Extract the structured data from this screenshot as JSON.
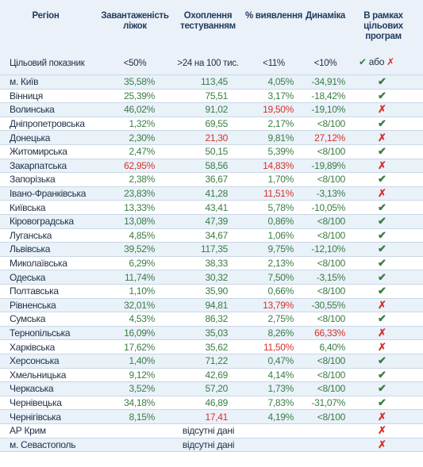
{
  "header": [
    "Регіон",
    "Завантаженість ліжок",
    "Охоплення тестуванням",
    "% виявлення",
    "Динаміка",
    "В рамках цільових програм"
  ],
  "target": {
    "cells": [
      "Цільовий показник",
      "<50%",
      ">24 на 100 тис.",
      "<11%",
      "<10%"
    ],
    "or": "або"
  },
  "rows": [
    {
      "cells": [
        "м. Київ",
        "35,58%",
        "113,45",
        "4,05%",
        "-34,91%"
      ],
      "red": [],
      "ok": true
    },
    {
      "cells": [
        "Вінниця",
        "25,39%",
        "75,51",
        "3,17%",
        "-18,42%"
      ],
      "red": [],
      "ok": true
    },
    {
      "cells": [
        "Волинська",
        "46,02%",
        "91,02",
        "19,50%",
        "-19,10%"
      ],
      "red": [
        3
      ],
      "ok": false
    },
    {
      "cells": [
        "Дніпропетровська",
        "1,32%",
        "69,55",
        "2,17%",
        "<8/100"
      ],
      "red": [],
      "ok": true
    },
    {
      "cells": [
        "Донецька",
        "2,30%",
        "21,30",
        "9,81%",
        "27,12%"
      ],
      "red": [
        2,
        4
      ],
      "ok": false
    },
    {
      "cells": [
        "Житомирська",
        "2,47%",
        "50,15",
        "5,39%",
        "<8/100"
      ],
      "red": [],
      "ok": true
    },
    {
      "cells": [
        "Закарпатська",
        "62,95%",
        "58,56",
        "14,83%",
        "-19,89%"
      ],
      "red": [
        1,
        3
      ],
      "ok": false
    },
    {
      "cells": [
        "Запорізька",
        "2,38%",
        "36,67",
        "1,70%",
        "<8/100"
      ],
      "red": [],
      "ok": true
    },
    {
      "cells": [
        "Івано-Франківська",
        "23,83%",
        "41,28",
        "11,51%",
        "-3,13%"
      ],
      "red": [
        3
      ],
      "ok": false
    },
    {
      "cells": [
        "Київська",
        "13,33%",
        "43,41",
        "5,78%",
        "-10,05%"
      ],
      "red": [],
      "ok": true
    },
    {
      "cells": [
        "Кіровоградська",
        "13,08%",
        "47,39",
        "0,86%",
        "<8/100"
      ],
      "red": [],
      "ok": true
    },
    {
      "cells": [
        "Луганська",
        "4,85%",
        "34,67",
        "1,06%",
        "<8/100"
      ],
      "red": [],
      "ok": true
    },
    {
      "cells": [
        "Львівська",
        "39,52%",
        "117,35",
        "9,75%",
        "-12,10%"
      ],
      "red": [],
      "ok": true
    },
    {
      "cells": [
        "Миколаївська",
        "6,29%",
        "38,33",
        "2,13%",
        "<8/100"
      ],
      "red": [],
      "ok": true
    },
    {
      "cells": [
        "Одеська",
        "11,74%",
        "30,32",
        "7,50%",
        "-3,15%"
      ],
      "red": [],
      "ok": true
    },
    {
      "cells": [
        "Полтавська",
        "1,10%",
        "35,90",
        "0,66%",
        "<8/100"
      ],
      "red": [],
      "ok": true
    },
    {
      "cells": [
        "Рівненська",
        "32,01%",
        "94,81",
        "13,79%",
        "-30,55%"
      ],
      "red": [
        3
      ],
      "ok": false
    },
    {
      "cells": [
        "Сумська",
        "4,53%",
        "86,32",
        "2,75%",
        "<8/100"
      ],
      "red": [],
      "ok": true
    },
    {
      "cells": [
        "Тернопільська",
        "16,09%",
        "35,03",
        "8,26%",
        "66,33%"
      ],
      "red": [
        4
      ],
      "ok": false
    },
    {
      "cells": [
        "Харківська",
        "17,62%",
        "35,62",
        "11,50%",
        "6,40%"
      ],
      "red": [
        3
      ],
      "ok": false
    },
    {
      "cells": [
        "Херсонська",
        "1,40%",
        "71,22",
        "0,47%",
        "<8/100"
      ],
      "red": [],
      "ok": true
    },
    {
      "cells": [
        "Хмельницька",
        "9,12%",
        "42,69",
        "4,14%",
        "<8/100"
      ],
      "red": [],
      "ok": true
    },
    {
      "cells": [
        "Черкаська",
        "3,52%",
        "57,20",
        "1,73%",
        "<8/100"
      ],
      "red": [],
      "ok": true
    },
    {
      "cells": [
        "Чернівецька",
        "34,18%",
        "46,89",
        "7,83%",
        "-31,07%"
      ],
      "red": [],
      "ok": true
    },
    {
      "cells": [
        "Чернігівська",
        "8,15%",
        "17,41",
        "4,19%",
        "<8/100"
      ],
      "red": [
        2
      ],
      "ok": false
    },
    {
      "cells": [
        "АР Крим"
      ],
      "note": "відсутні дані",
      "red": [],
      "ok": false
    },
    {
      "cells": [
        "м. Севастополь"
      ],
      "note": "відсутні дані",
      "red": [],
      "ok": false
    }
  ]
}
